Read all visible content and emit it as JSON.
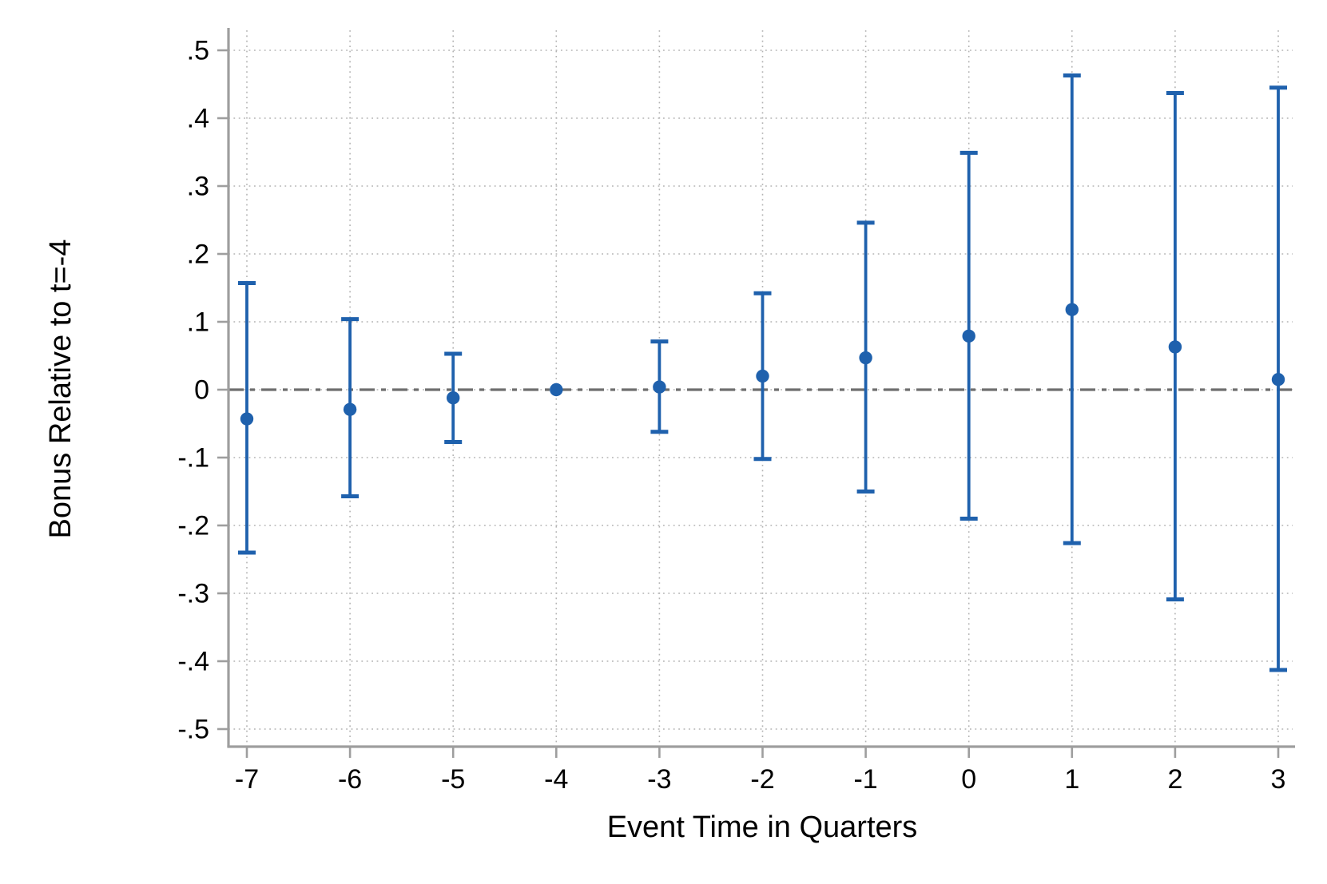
{
  "chart_data": {
    "type": "scatter",
    "subtype": "event-study coefficient plot with 95% confidence intervals",
    "title": "",
    "xlabel": "Event Time in Quarters",
    "ylabel": "Bonus Relative to t=-4",
    "x": [
      -7,
      -6,
      -5,
      -4,
      -3,
      -2,
      -1,
      0,
      1,
      2,
      3
    ],
    "x_tick_labels": [
      "-7",
      "-6",
      "-5",
      "-4",
      "-3",
      "-2",
      "-1",
      "0",
      "1",
      "2",
      "3"
    ],
    "y_ticks": [
      0.5,
      0.4,
      0.3,
      0.2,
      0.1,
      0,
      -0.1,
      -0.2,
      -0.3,
      -0.4,
      -0.5
    ],
    "y_tick_labels": [
      ".5",
      ".4",
      ".3",
      ".2",
      ".1",
      "0",
      "-.1",
      "-.2",
      "-.3",
      "-.4",
      "-.5"
    ],
    "ylim": [
      -0.53,
      0.53
    ],
    "grid": "dotted, both horizontal and vertical at every tick",
    "legend": "none",
    "reference_line_y": 0,
    "series": [
      {
        "name": "coefficient",
        "marker": "filled-circle",
        "points": [
          {
            "x": -7,
            "y": -0.043,
            "ci_low": -0.24,
            "ci_high": 0.157
          },
          {
            "x": -6,
            "y": -0.029,
            "ci_low": -0.157,
            "ci_high": 0.104
          },
          {
            "x": -5,
            "y": -0.012,
            "ci_low": -0.077,
            "ci_high": 0.053
          },
          {
            "x": -4,
            "y": 0.0,
            "ci_low": null,
            "ci_high": null
          },
          {
            "x": -3,
            "y": 0.004,
            "ci_low": -0.062,
            "ci_high": 0.071
          },
          {
            "x": -2,
            "y": 0.02,
            "ci_low": -0.102,
            "ci_high": 0.142
          },
          {
            "x": -1,
            "y": 0.047,
            "ci_low": -0.15,
            "ci_high": 0.246
          },
          {
            "x": 0,
            "y": 0.079,
            "ci_low": -0.19,
            "ci_high": 0.349
          },
          {
            "x": 1,
            "y": 0.118,
            "ci_low": -0.226,
            "ci_high": 0.463
          },
          {
            "x": 2,
            "y": 0.063,
            "ci_low": -0.309,
            "ci_high": 0.437
          },
          {
            "x": 3,
            "y": 0.015,
            "ci_low": -0.413,
            "ci_high": 0.445
          }
        ]
      }
    ]
  },
  "colors": {
    "marker_blue": "#1f61ad",
    "zero_line_gray": "#6e6e6e",
    "grid_gray": "#b3b3b3",
    "axis_gray": "#9e9e9e",
    "text_black": "#000000",
    "background": "#ffffff"
  }
}
